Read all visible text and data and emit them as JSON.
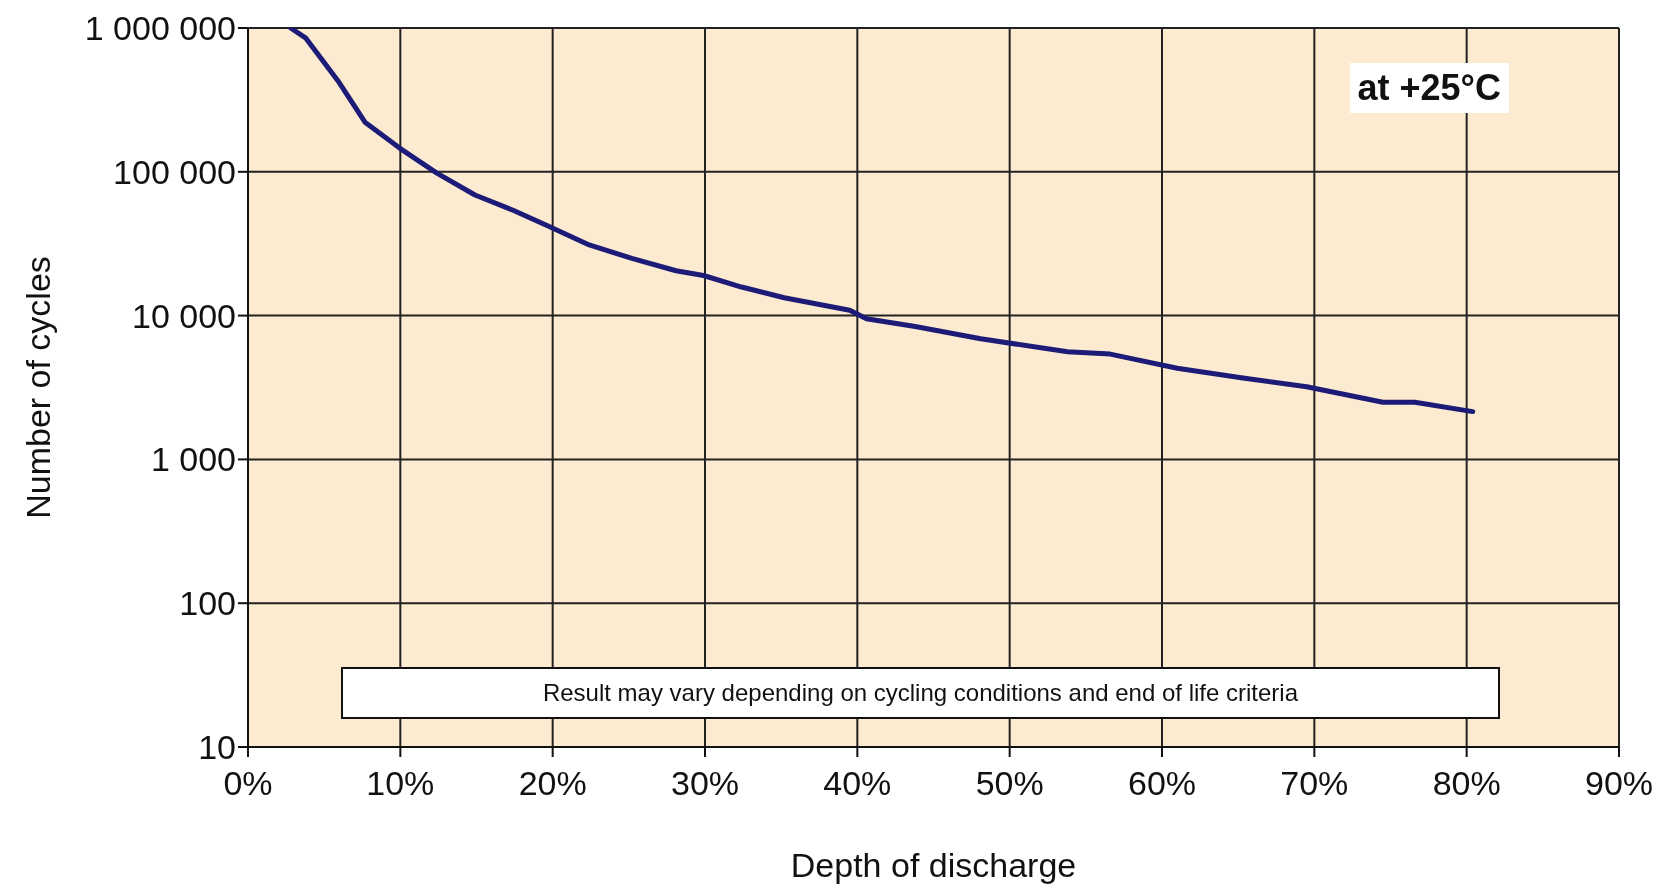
{
  "chart_data": {
    "type": "line",
    "xlabel": "Depth of discharge",
    "ylabel": "Number of cycles",
    "annotations": [
      "at +25°C",
      "Result may vary depending on cycling conditions and end of life criteria"
    ],
    "log": "y",
    "grid": true,
    "legend": false,
    "marker": "none",
    "line_style": "solid",
    "xlim": [
      0,
      90
    ],
    "xticks": [
      {
        "value": 0,
        "label": "0%"
      },
      {
        "value": 10,
        "label": "10%"
      },
      {
        "value": 20,
        "label": "20%"
      },
      {
        "value": 30,
        "label": "30%"
      },
      {
        "value": 40,
        "label": "40%"
      },
      {
        "value": 50,
        "label": "50%"
      },
      {
        "value": 60,
        "label": "60%"
      },
      {
        "value": 70,
        "label": "70%"
      },
      {
        "value": 80,
        "label": "80%"
      },
      {
        "value": 90,
        "label": "90%"
      }
    ],
    "ylim": [
      10,
      1000000
    ],
    "yticks": [
      10,
      100,
      {
        "value": 1000,
        "label": "1 000"
      },
      {
        "value": 10000,
        "label": "10 000"
      },
      {
        "value": 100000,
        "label": "100 000"
      },
      {
        "value": 1000000,
        "label": "1 000 000"
      }
    ],
    "x": [
      2.8,
      3.8,
      5.9,
      7.7,
      10,
      12.4,
      14.9,
      17.4,
      19.7,
      22.4,
      25.2,
      28.1,
      29.9,
      32.4,
      35.2,
      39.5,
      40.6,
      43.8,
      48.1,
      53.8,
      56.6,
      61,
      65.2,
      69.5,
      74.5,
      76.6,
      80.4
    ],
    "series": [
      {
        "color": "#1c1c78",
        "values": [
          1000000,
          850000,
          430000,
          220000,
          145000,
          98000,
          69000,
          54000,
          42000,
          31000,
          25000,
          20500,
          19000,
          15800,
          13300,
          10900,
          9500,
          8400,
          6900,
          5600,
          5400,
          4300,
          3700,
          3200,
          2500,
          2500,
          2150
        ]
      }
    ]
  }
}
